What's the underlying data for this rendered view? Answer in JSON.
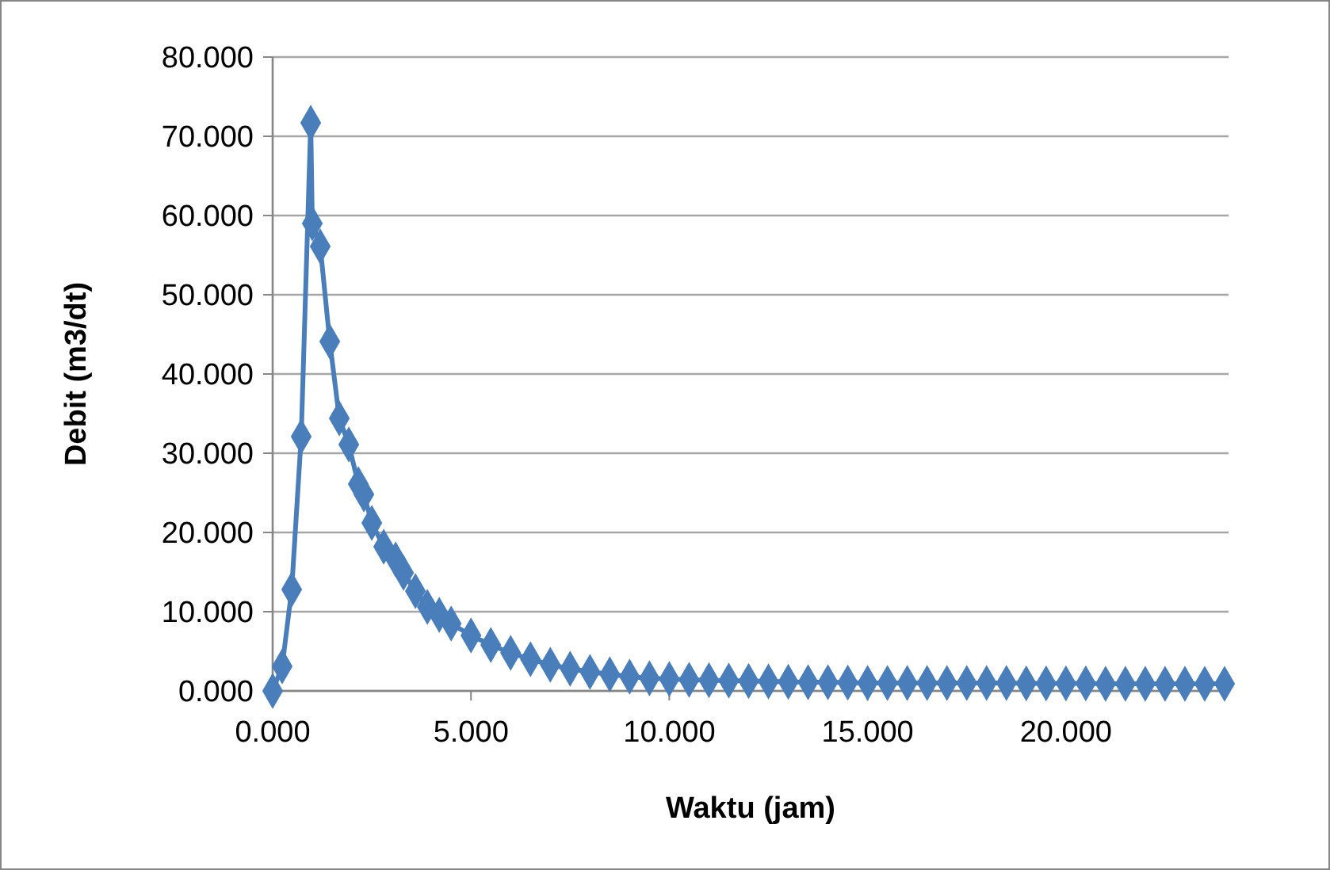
{
  "chart_data": {
    "type": "line",
    "xlabel": "Waktu (jam)",
    "ylabel": "Debit (m3/dt)",
    "marker": "diamond",
    "grid": "y",
    "line_style": "solid",
    "xlim": [
      0,
      24.1
    ],
    "ylim": [
      0,
      80
    ],
    "xticks": [
      {
        "value": 0,
        "label": "0.000"
      },
      {
        "value": 5,
        "label": "5.000"
      },
      {
        "value": 10,
        "label": "10.000"
      },
      {
        "value": 15,
        "label": "15.000"
      },
      {
        "value": 20,
        "label": "20.000"
      }
    ],
    "yticks": [
      {
        "value": 0,
        "label": "0.000"
      },
      {
        "value": 10,
        "label": "10.000"
      },
      {
        "value": 20,
        "label": "20.000"
      },
      {
        "value": 30,
        "label": "30.000"
      },
      {
        "value": 40,
        "label": "40.000"
      },
      {
        "value": 50,
        "label": "50.000"
      },
      {
        "value": 60,
        "label": "60.000"
      },
      {
        "value": 70,
        "label": "70.000"
      },
      {
        "value": 80,
        "label": "80.000"
      }
    ],
    "series": [
      {
        "color": "#4a7ebb",
        "x": [
          0,
          0.24,
          0.48,
          0.72,
          0.96,
          1.0,
          1.2,
          1.44,
          1.68,
          1.92,
          2.16,
          2.3,
          2.5,
          2.8,
          3.1,
          3.3,
          3.6,
          3.9,
          4.2,
          4.5,
          5,
          5.5,
          6,
          6.5,
          7,
          7.5,
          8,
          8.5,
          9,
          9.5,
          10,
          10.5,
          11,
          11.5,
          12,
          12.5,
          13,
          13.5,
          14,
          14.5,
          15,
          15.5,
          16,
          16.5,
          17,
          17.5,
          18,
          18.5,
          19,
          19.5,
          20,
          20.5,
          21,
          21.5,
          22,
          22.5,
          23,
          23.5,
          24
        ],
        "values": [
          0,
          3.1,
          12.8,
          32.1,
          71.7,
          59.0,
          56.1,
          44.1,
          34.4,
          31.1,
          26.1,
          24.8,
          21.2,
          18.2,
          16.6,
          14.9,
          12.6,
          10.6,
          9.6,
          8.5,
          7.0,
          5.8,
          4.8,
          4.0,
          3.3,
          2.8,
          2.4,
          2.1,
          1.8,
          1.6,
          1.5,
          1.4,
          1.35,
          1.3,
          1.25,
          1.2,
          1.15,
          1.1,
          1.1,
          1.05,
          1.0,
          1.0,
          1.0,
          1.0,
          1.0,
          1.0,
          1.0,
          1.0,
          0.95,
          0.95,
          0.95,
          0.95,
          0.9,
          0.9,
          0.9,
          0.9,
          0.9,
          0.9,
          0.9
        ]
      }
    ]
  }
}
